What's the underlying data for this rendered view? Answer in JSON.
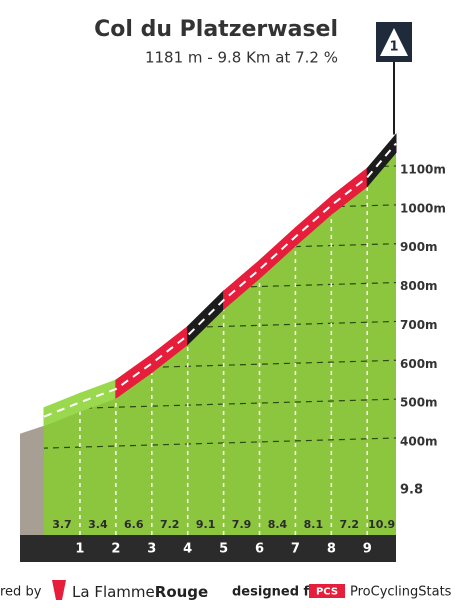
{
  "chart_data": {
    "type": "climb-profile",
    "title": "Col du Platzerwasel",
    "subtitle": "1181 m - 9.8 Km at 7.2 %",
    "marker": "1",
    "x": [
      0,
      1,
      2,
      3,
      4,
      5,
      6,
      7,
      8,
      9,
      9.8
    ],
    "elevations": [
      478,
      515,
      549,
      615,
      687,
      778,
      857,
      941,
      1022,
      1094,
      1181
    ],
    "gradients": [
      3.7,
      3.4,
      6.6,
      7.2,
      9.1,
      7.9,
      8.4,
      8.1,
      7.2,
      10.9
    ],
    "gradient_colors": [
      "#9ad94e",
      "#9ad94e",
      "#e61e3c",
      "#e61e3c",
      "#1c1c1c",
      "#e61e3c",
      "#e61e3c",
      "#e61e3c",
      "#e61e3c",
      "#1c1c1c"
    ],
    "body_color": "#8cc63f",
    "xticks": [
      1,
      2,
      3,
      4,
      5,
      6,
      7,
      8,
      9
    ],
    "xlim": [
      0,
      9.8
    ],
    "ylim": [
      400,
      1100
    ],
    "yticks": [
      {
        "value": 400,
        "label": "400m"
      },
      {
        "value": 500,
        "label": "500m"
      },
      {
        "value": 600,
        "label": "600m"
      },
      {
        "value": 700,
        "label": "700m"
      },
      {
        "value": 800,
        "label": "800m"
      },
      {
        "value": 900,
        "label": "900m"
      },
      {
        "value": 1000,
        "label": "1000m"
      },
      {
        "value": 1100,
        "label": "1100m"
      }
    ],
    "grid": true
  },
  "footer": {
    "powered": "red by",
    "brand_a": "La Flamme",
    "brand_b": "Rouge",
    "designed": "designed for",
    "pcs": "PCS",
    "site": "ProCyclingStats"
  }
}
